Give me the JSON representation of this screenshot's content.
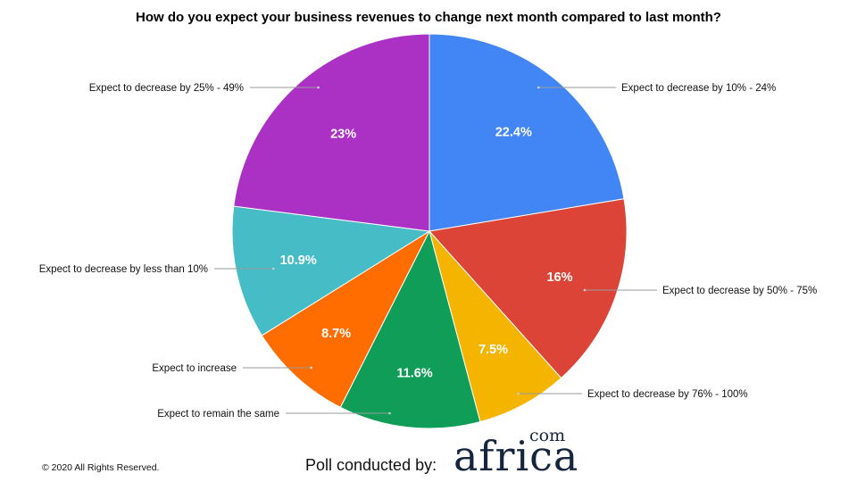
{
  "chart_data": {
    "type": "pie",
    "title": "How do you expect your business revenues to change next month compared to last month?",
    "slices": [
      {
        "label": "Expect to decrease by 10% - 24%",
        "value": 22.4,
        "display": "22.4%",
        "color": "#4285f4"
      },
      {
        "label": "Expect to decrease by 50% - 75%",
        "value": 16,
        "display": "16%",
        "color": "#db4437"
      },
      {
        "label": "Expect to decrease by 76% - 100%",
        "value": 7.5,
        "display": "7.5%",
        "color": "#f4b400"
      },
      {
        "label": "Expect to remain the same",
        "value": 11.6,
        "display": "11.6%",
        "color": "#0f9d58"
      },
      {
        "label": "Expect to increase",
        "value": 8.7,
        "display": "8.7%",
        "color": "#ff6d00"
      },
      {
        "label": "Expect to decrease by less than 10%",
        "value": 10.9,
        "display": "10.9%",
        "color": "#46bdc6"
      },
      {
        "label": "Expect to decrease by 25% - 49%",
        "value": 23,
        "display": "23%",
        "color": "#ab30c4"
      }
    ]
  },
  "footer": {
    "copyright": "© 2020 All Rights Reserved.",
    "poll_text": "Poll conducted by:",
    "logo_main": "africa",
    "logo_com": "com"
  }
}
